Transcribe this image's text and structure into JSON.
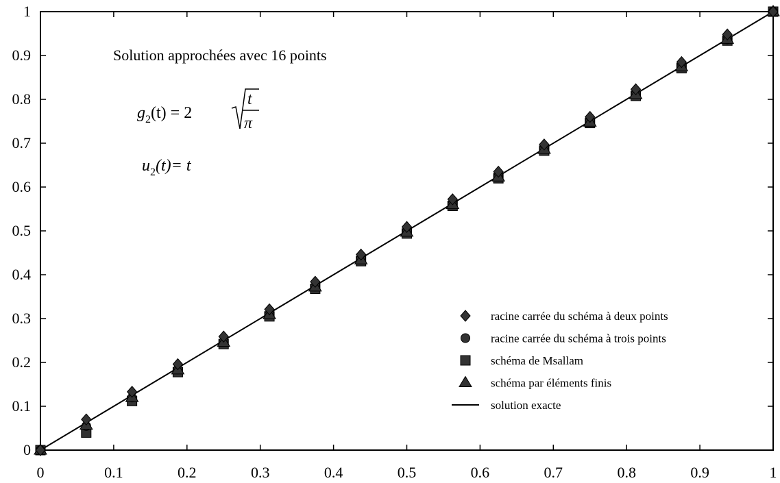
{
  "chart_data": {
    "type": "scatter",
    "title": "",
    "annotation": "Solution approchées avec 16 points",
    "formula_g": {
      "lhs": "g",
      "sub": "2",
      "arg": "(t) = 2",
      "num": "t",
      "den": "π"
    },
    "formula_u": {
      "lhs": "u",
      "sub": "2",
      "rhs": "(t)= t"
    },
    "xlim": [
      0,
      1
    ],
    "ylim": [
      0,
      1
    ],
    "x_ticks": [
      "0",
      "0.1",
      "0.2",
      "0.3",
      "0.4",
      "0.5",
      "0.6",
      "0.7",
      "0.8",
      "0.9",
      "1"
    ],
    "y_ticks": [
      "0",
      "0.1",
      "0.2",
      "0.3",
      "0.4",
      "0.5",
      "0.6",
      "0.7",
      "0.8",
      "0.9",
      "1"
    ],
    "grid": false,
    "legend_position": "bottom-right",
    "x": [
      0,
      0.0625,
      0.125,
      0.1875,
      0.25,
      0.3125,
      0.375,
      0.4375,
      0.5,
      0.5625,
      0.625,
      0.6875,
      0.75,
      0.8125,
      0.875,
      0.9375,
      1
    ],
    "series": [
      {
        "name": "racine carrée du schéma à deux points",
        "marker": "diamond",
        "values": [
          0,
          0.07,
          0.133,
          0.196,
          0.259,
          0.321,
          0.384,
          0.446,
          0.509,
          0.572,
          0.635,
          0.697,
          0.76,
          0.823,
          0.885,
          0.948,
          1
        ]
      },
      {
        "name": "racine carrée du schéma à trois points",
        "marker": "circle",
        "values": [
          0,
          0.055,
          0.12,
          0.184,
          0.247,
          0.31,
          0.373,
          0.436,
          0.498,
          0.561,
          0.624,
          0.687,
          0.75,
          0.812,
          0.875,
          0.937,
          1
        ]
      },
      {
        "name": "schéma de Msallam",
        "marker": "square",
        "values": [
          0,
          0.04,
          0.112,
          0.178,
          0.242,
          0.305,
          0.368,
          0.431,
          0.494,
          0.557,
          0.62,
          0.683,
          0.746,
          0.808,
          0.871,
          0.934,
          1
        ]
      },
      {
        "name": "schéma par éléments finis",
        "marker": "triangle",
        "values": [
          0,
          0.057,
          0.12,
          0.183,
          0.246,
          0.309,
          0.372,
          0.434,
          0.497,
          0.56,
          0.623,
          0.686,
          0.748,
          0.811,
          0.874,
          0.937,
          1
        ]
      },
      {
        "name": "solution exacte",
        "marker": "line",
        "x": [
          0,
          1
        ],
        "values": [
          0,
          1
        ]
      }
    ]
  }
}
